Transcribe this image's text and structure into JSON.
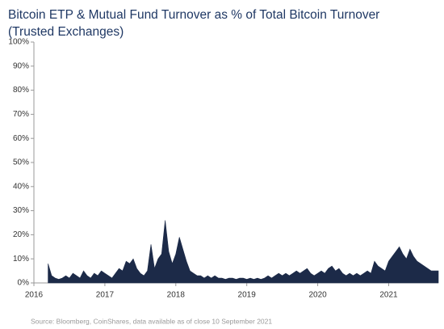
{
  "chart_data": {
    "type": "area",
    "title": "Bitcoin ETP & Mutual Fund Turnover as % of Total Bitcoin Turnover (Trusted Exchanges)",
    "source": "Source: Bloomberg, CoinShares, data available as of close 10 September 2021",
    "color": "#1c2a48",
    "x": [
      2016.2,
      2016.25,
      2016.3,
      2016.35,
      2016.4,
      2016.45,
      2016.5,
      2016.55,
      2016.6,
      2016.65,
      2016.7,
      2016.75,
      2016.8,
      2016.85,
      2016.9,
      2016.95,
      2017,
      2017.05,
      2017.1,
      2017.15,
      2017.2,
      2017.25,
      2017.3,
      2017.35,
      2017.4,
      2017.45,
      2017.5,
      2017.55,
      2017.6,
      2017.65,
      2017.7,
      2017.75,
      2017.8,
      2017.85,
      2017.9,
      2017.95,
      2018,
      2018.05,
      2018.1,
      2018.15,
      2018.2,
      2018.25,
      2018.3,
      2018.35,
      2018.4,
      2018.45,
      2018.5,
      2018.55,
      2018.6,
      2018.65,
      2018.7,
      2018.75,
      2018.8,
      2018.85,
      2018.9,
      2018.95,
      2019,
      2019.05,
      2019.1,
      2019.15,
      2019.2,
      2019.25,
      2019.3,
      2019.35,
      2019.4,
      2019.45,
      2019.5,
      2019.55,
      2019.6,
      2019.65,
      2019.7,
      2019.75,
      2019.8,
      2019.85,
      2019.9,
      2019.95,
      2020,
      2020.05,
      2020.1,
      2020.15,
      2020.2,
      2020.25,
      2020.3,
      2020.35,
      2020.4,
      2020.45,
      2020.5,
      2020.55,
      2020.6,
      2020.65,
      2020.7,
      2020.75,
      2020.8,
      2020.85,
      2020.9,
      2020.95,
      2021,
      2021.05,
      2021.1,
      2021.15,
      2021.2,
      2021.25,
      2021.3,
      2021.35,
      2021.4,
      2021.45,
      2021.5,
      2021.55,
      2021.6,
      2021.65,
      2021.7
    ],
    "values": [
      8,
      3,
      2,
      1.5,
      2,
      3,
      2,
      4,
      3,
      2,
      5,
      3,
      2,
      4,
      3,
      5,
      4,
      3,
      2,
      4,
      6,
      5,
      9,
      8,
      10,
      6,
      4,
      3,
      5,
      16,
      6,
      10,
      12,
      26,
      13,
      8,
      12,
      19,
      14,
      9,
      5,
      4,
      3,
      3,
      2,
      3,
      2,
      3,
      2,
      2,
      1.5,
      2,
      2,
      1.5,
      2,
      2,
      1.5,
      2,
      1.5,
      2,
      1.5,
      2,
      3,
      2,
      3,
      4,
      3,
      4,
      3,
      4,
      5,
      4,
      5,
      6,
      4,
      3,
      4,
      5,
      4,
      6,
      7,
      5,
      6,
      4,
      3,
      4,
      3,
      4,
      3,
      4,
      5,
      4,
      9,
      7,
      6,
      5,
      9,
      11,
      13,
      15,
      12,
      10,
      14,
      11,
      9,
      8,
      7,
      6,
      5,
      5,
      5
    ],
    "xlim": [
      2016,
      2021.7
    ],
    "xticks": [
      2016,
      2017,
      2018,
      2019,
      2020,
      2021
    ],
    "ylim": [
      0,
      100
    ],
    "yticks": [
      {
        "value": 0,
        "label": "0%"
      },
      {
        "value": 10,
        "label": "10%"
      },
      {
        "value": 20,
        "label": "20%"
      },
      {
        "value": 30,
        "label": "30%"
      },
      {
        "value": 40,
        "label": "40%"
      },
      {
        "value": 50,
        "label": "50%"
      },
      {
        "value": 60,
        "label": "60%"
      },
      {
        "value": 70,
        "label": "70%"
      },
      {
        "value": 80,
        "label": "80%"
      },
      {
        "value": 90,
        "label": "90%"
      },
      {
        "value": 100,
        "label": "100%"
      }
    ]
  }
}
